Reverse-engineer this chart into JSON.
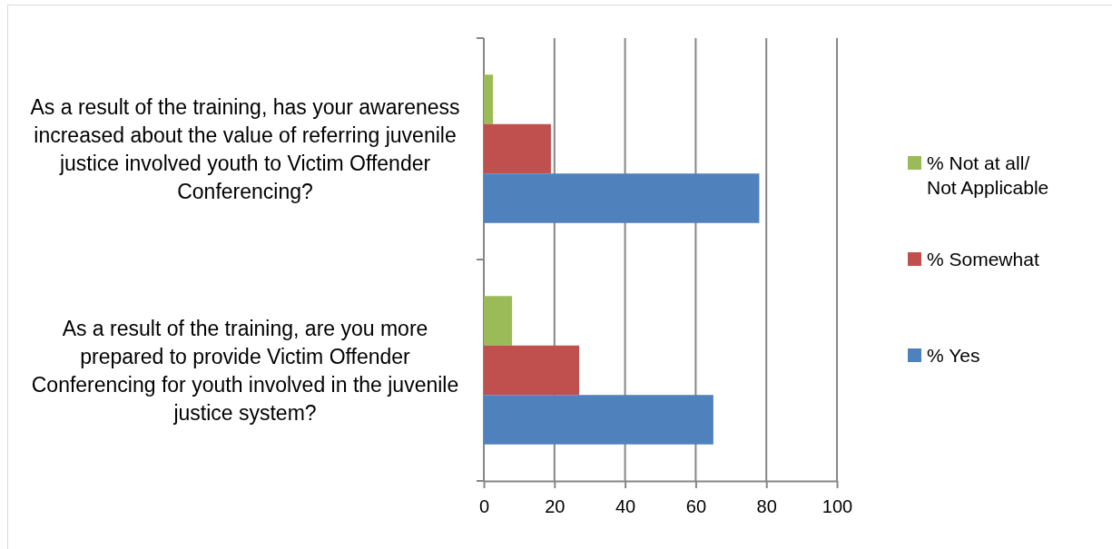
{
  "chart_data": {
    "type": "bar",
    "orientation": "horizontal",
    "categories": [
      "As a result of the training, has your awareness increased about the value of referring juvenile justice involved youth to Victim Offender Conferencing?",
      "As a result of the training, are you more prepared to provide Victim Offender Conferencing for youth involved in the juvenile justice system?"
    ],
    "series": [
      {
        "name": "% Not at all/Not Applicable",
        "color": "#9bbb59",
        "values": [
          2.6,
          8
        ]
      },
      {
        "name": "% Somewhat",
        "color": "#c0504d",
        "values": [
          19,
          27
        ]
      },
      {
        "name": "% Yes",
        "color": "#4f81bd",
        "values": [
          78,
          65
        ]
      }
    ],
    "xlim": [
      0,
      100
    ],
    "xticks": [
      0,
      20,
      40,
      60,
      80,
      100
    ],
    "grid": "x",
    "legend": "right"
  }
}
